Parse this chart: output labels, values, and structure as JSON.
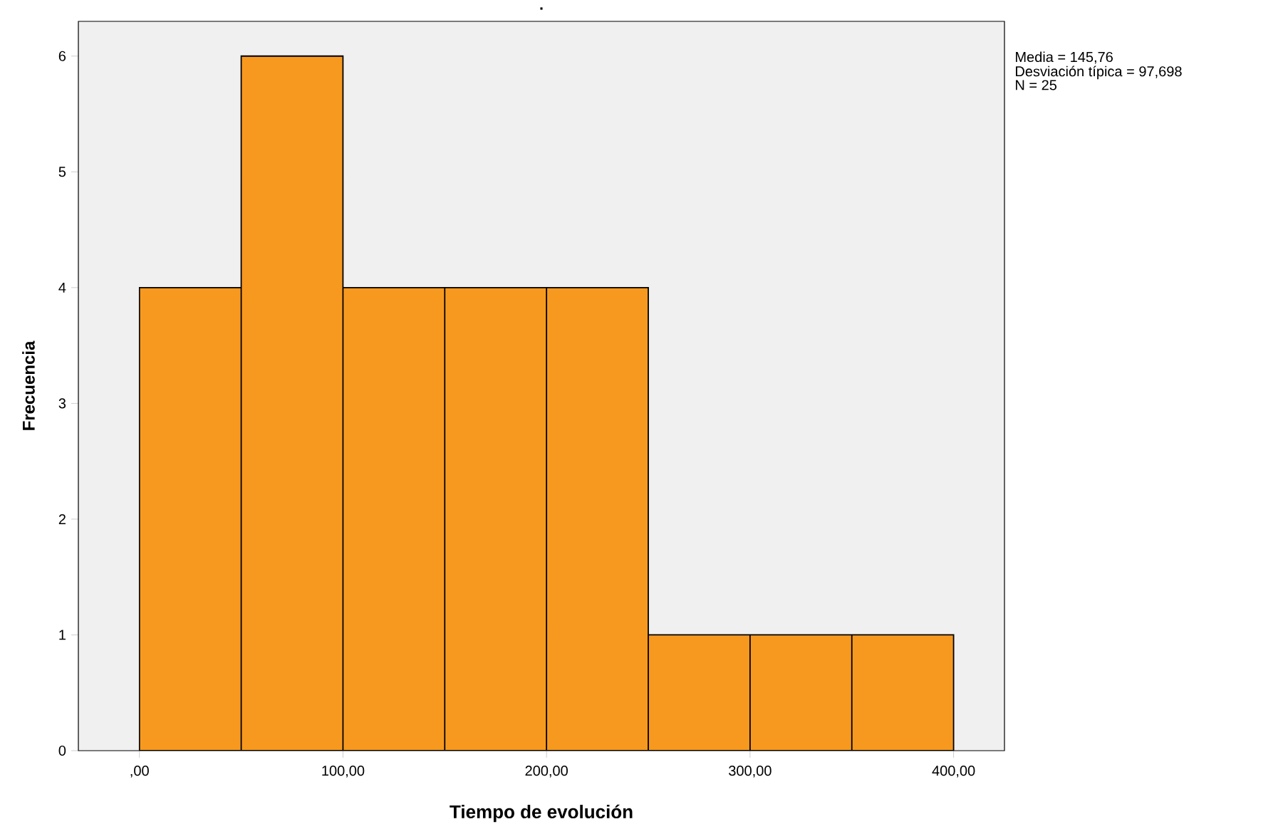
{
  "chart_data": {
    "type": "histogram",
    "title": ".",
    "xlabel": "Tiempo de evolución",
    "ylabel": "Frecuencia",
    "bins": [
      0,
      50,
      100,
      150,
      200,
      250,
      300,
      350,
      400
    ],
    "values": [
      4,
      6,
      4,
      4,
      4,
      1,
      1,
      1
    ],
    "color": "#f7991f",
    "xlim": [
      -30,
      425
    ],
    "ylim": [
      0,
      6.3
    ],
    "xticks": [
      {
        "value": 0,
        "label": ",00"
      },
      {
        "value": 100,
        "label": "100,00"
      },
      {
        "value": 200,
        "label": "200,00"
      },
      {
        "value": 300,
        "label": "300,00"
      },
      {
        "value": 400,
        "label": "400,00"
      }
    ],
    "yticks": [
      0,
      1,
      2,
      3,
      4,
      5,
      6
    ],
    "grid": false,
    "annotations": [
      "Media = 145,76",
      "Desviación típica = 97,698",
      "N = 25"
    ]
  }
}
